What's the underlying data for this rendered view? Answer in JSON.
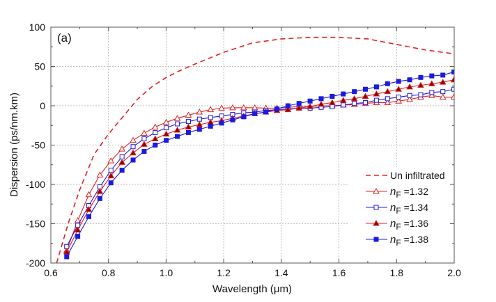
{
  "chart_data": {
    "type": "line",
    "panel_label": "(a)",
    "xlabel": "Wavelength (μm)",
    "ylabel": "Dispersion (ps/nm.km)",
    "xlim": [
      0.6,
      2.0
    ],
    "ylim": [
      -200,
      100
    ],
    "xticks": [
      "0.6",
      "0.8",
      "1.0",
      "1.2",
      "1.4",
      "1.6",
      "1.8",
      "2.0"
    ],
    "yticks": [
      "-200",
      "-150",
      "-100",
      "-50",
      "0",
      "50",
      "100"
    ],
    "grid": true,
    "legend_position": "bottom-right",
    "series": [
      {
        "name": "Un infiltrated",
        "legend_prefix": "",
        "legend_text": "Un infiltrated",
        "color": "#e02020",
        "style": "dashed",
        "marker": "none",
        "x": [
          0.62,
          0.66,
          0.7,
          0.75,
          0.8,
          0.85,
          0.9,
          0.95,
          1.0,
          1.05,
          1.1,
          1.2,
          1.3,
          1.4,
          1.5,
          1.6,
          1.7,
          1.8,
          1.9,
          2.0
        ],
        "y": [
          -200,
          -150,
          -107,
          -62,
          -36,
          -14,
          8,
          24,
          36,
          45,
          53,
          68,
          80,
          85,
          87,
          87,
          85,
          78,
          71,
          66
        ]
      },
      {
        "name": "nF =1.32",
        "legend_prefix": "n",
        "legend_sub": "F",
        "legend_text": " =1.32",
        "color": "#e02020",
        "style": "solid",
        "marker": "triangle-open",
        "x_start": 0.655,
        "x_step": 0.0384,
        "y": [
          -184,
          -146,
          -113,
          -88,
          -70,
          -55,
          -44,
          -35,
          -27,
          -21,
          -16,
          -12,
          -8,
          -5,
          -3,
          -2.5,
          -2.5,
          -2.5,
          -3,
          -3,
          -2,
          -1,
          -1,
          0,
          0,
          1,
          1.5,
          3,
          4,
          4,
          6,
          8,
          11,
          13,
          11,
          11
        ]
      },
      {
        "name": "nF =1.34",
        "legend_prefix": "n",
        "legend_sub": "F",
        "legend_text": " =1.34",
        "color": "#1a1ae0",
        "style": "solid",
        "marker": "square-open",
        "x_start": 0.655,
        "x_step": 0.0384,
        "y": [
          -179,
          -152,
          -127,
          -103,
          -82,
          -65,
          -52,
          -42,
          -34,
          -28,
          -23,
          -20,
          -17,
          -15,
          -13,
          -11,
          -9,
          -8,
          -6,
          -5,
          -4,
          -3,
          -3,
          -2,
          -1,
          1,
          3,
          4,
          7,
          9,
          11,
          13,
          14,
          17,
          18,
          21
        ]
      },
      {
        "name": "nF =1.36",
        "legend_prefix": "n",
        "legend_sub": "F",
        "legend_text": " =1.36",
        "color": "#e02020",
        "marker_fill": "#8b0000",
        "style": "solid",
        "marker": "triangle-filled",
        "x_start": 0.655,
        "x_step": 0.0384,
        "y": [
          -186,
          -158,
          -132,
          -109,
          -89,
          -72,
          -60,
          -49,
          -42,
          -36,
          -31,
          -27,
          -24,
          -21,
          -19,
          -16,
          -13,
          -10,
          -8,
          -6,
          -5,
          -3,
          -1,
          2,
          4,
          7,
          9,
          12,
          15,
          18,
          21,
          24,
          26,
          28,
          30,
          33
        ]
      },
      {
        "name": "nF =1.38",
        "legend_prefix": "n",
        "legend_sub": "F",
        "legend_text": " =1.38",
        "color": "#1a1ae0",
        "style": "solid",
        "marker": "square-filled",
        "x_start": 0.655,
        "x_step": 0.0384,
        "y": [
          -192,
          -166,
          -141,
          -118,
          -98,
          -82,
          -69,
          -58,
          -50,
          -44,
          -39,
          -34,
          -30,
          -26,
          -22,
          -18,
          -14,
          -10,
          -8,
          -4,
          0,
          3,
          6,
          9,
          12,
          15,
          18,
          21,
          24,
          28,
          31,
          33,
          36,
          38,
          39,
          43
        ]
      }
    ]
  }
}
